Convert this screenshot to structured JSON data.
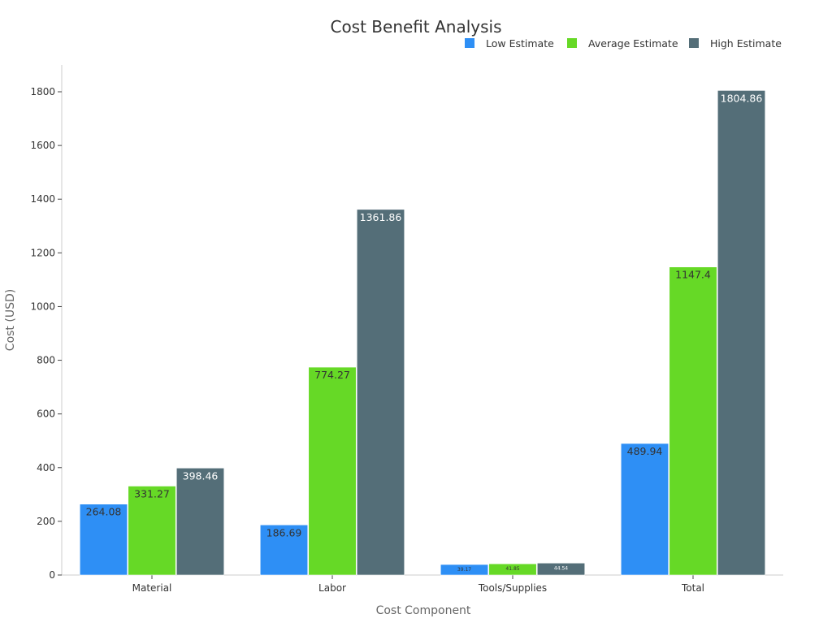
{
  "chart_data": {
    "type": "bar",
    "title": "Cost Benefit Analysis",
    "xlabel": "Cost Component",
    "ylabel": "Cost (USD)",
    "categories": [
      "Material",
      "Labor",
      "Tools/Supplies",
      "Total"
    ],
    "series": [
      {
        "name": "Low Estimate",
        "color": "#2e8ff5",
        "values": [
          264.08,
          186.69,
          39.17,
          489.94
        ],
        "labels": [
          "264.08",
          "186.69",
          "39.17",
          "489.94"
        ]
      },
      {
        "name": "Average Estimate",
        "color": "#66d926",
        "values": [
          331.27,
          774.27,
          41.85,
          1147.4
        ],
        "labels": [
          "331.27",
          "774.27",
          "41.85",
          "1147.4"
        ]
      },
      {
        "name": "High Estimate",
        "color": "#546e78",
        "values": [
          398.46,
          1361.86,
          44.54,
          1804.86
        ],
        "labels": [
          "398.46",
          "1361.86",
          "44.54",
          "1804.86"
        ]
      }
    ],
    "yticks": [
      0,
      200,
      400,
      600,
      800,
      1000,
      1200,
      1400,
      1600,
      1800
    ],
    "ylim": [
      0,
      1900
    ],
    "grid": false,
    "legend_position": "top-right"
  }
}
